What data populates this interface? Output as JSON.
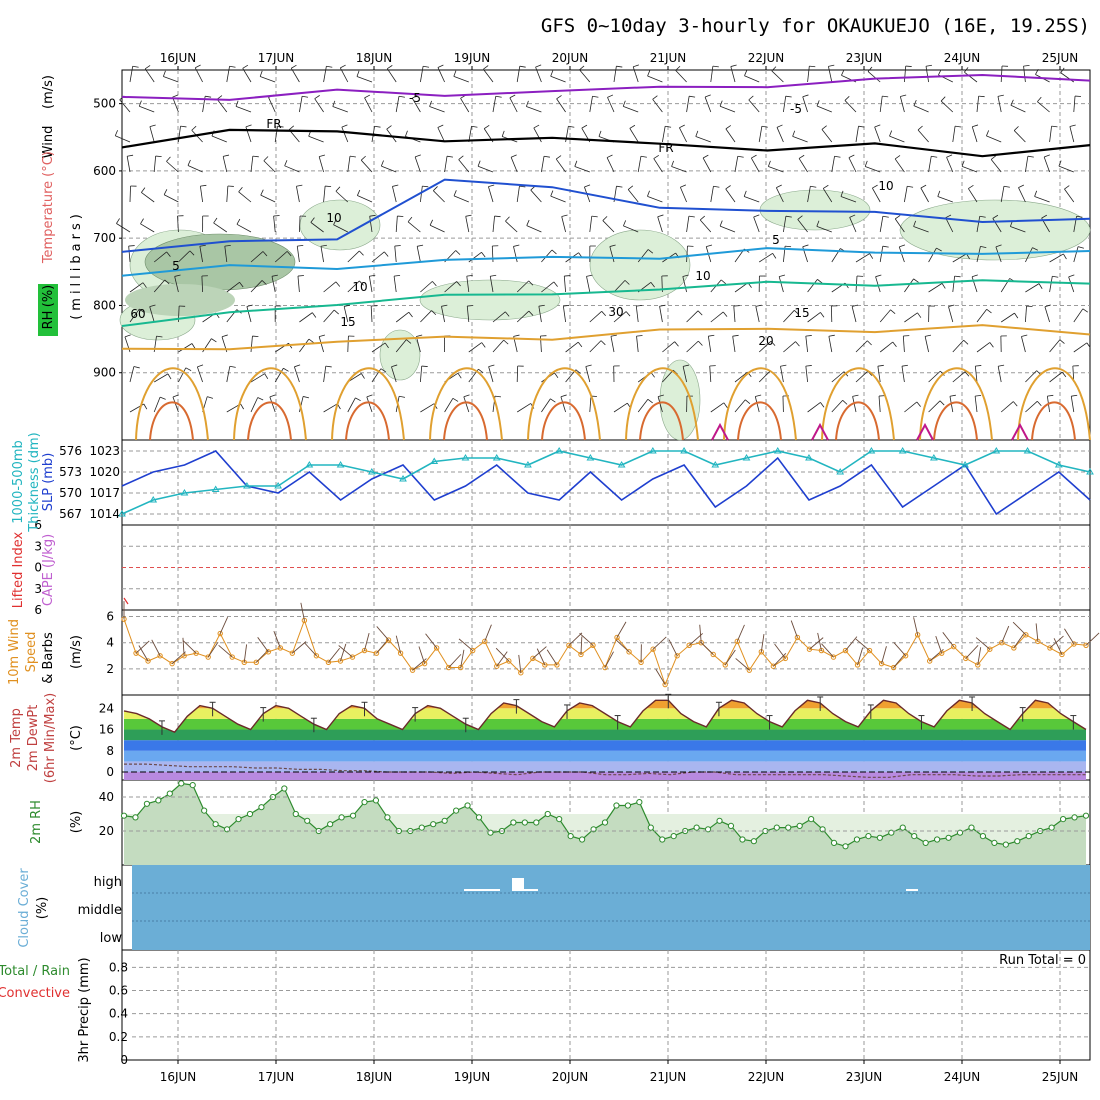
{
  "title": "GFS 0~10day 3-hourly for OKAUKUEJO (16E, 19.25S)",
  "dates": [
    "16JUN",
    "17JUN",
    "18JUN",
    "19JUN",
    "20JUN",
    "21JUN",
    "22JUN",
    "23JUN",
    "24JUN",
    "25JUN"
  ],
  "colors": {
    "grid": "#9a9a9a",
    "cloud": "#6baed6",
    "rh_line": "#2e8b2e",
    "wind_line": "#e09020",
    "slp": "#1f3fcf",
    "thick": "#22b5c0"
  },
  "chart_data": [
    {
      "type": "line",
      "panel": "upper-air",
      "ylabel_words": [
        "Wind",
        "(m/s)",
        "Temperature",
        "(°C)",
        "RH",
        "(%)"
      ],
      "ylabel_right": "(millibars)",
      "yticks": [
        500,
        600,
        700,
        800,
        900
      ],
      "ylim": [
        1000,
        450
      ],
      "contours": [
        {
          "label": "-5",
          "color": "#8b1fc0",
          "level_mb": [
            490,
            490,
            485,
            485,
            480,
            480,
            470,
            465,
            460,
            460
          ]
        },
        {
          "label": "FR",
          "color": "#000000",
          "level_mb": [
            560,
            540,
            545,
            550,
            555,
            560,
            565,
            565,
            575,
            560
          ]
        },
        {
          "label": "5",
          "color": "#2050d0",
          "level_mb": [
            715,
            710,
            700,
            610,
            630,
            650,
            660,
            665,
            670,
            675
          ]
        },
        {
          "label": "10",
          "color": "#1f9ad8",
          "level_mb": [
            755,
            745,
            740,
            735,
            730,
            725,
            720,
            720,
            720,
            725
          ]
        },
        {
          "label": "15",
          "color": "#17b890",
          "level_mb": [
            835,
            810,
            795,
            790,
            780,
            775,
            770,
            765,
            765,
            770
          ]
        },
        {
          "label": "20",
          "color": "#e0a030",
          "level_mb": [
            870,
            860,
            855,
            850,
            845,
            840,
            835,
            835,
            835,
            840
          ]
        }
      ],
      "contour_labels": [
        "-5",
        "FR",
        "5",
        "10",
        "15",
        "20",
        "10",
        "30",
        "30",
        "60"
      ]
    },
    {
      "type": "line",
      "panel": "slp-thickness",
      "ylabel_left": "1000-500mb Thickness (dm)",
      "ylabel_right": "SLP (mb)",
      "yticks_left": [
        567,
        570,
        573,
        576
      ],
      "yticks_right": [
        1014,
        1017,
        1020,
        1023
      ],
      "series": [
        {
          "name": "SLP",
          "values": [
            1018,
            1020,
            1021,
            1023,
            1018,
            1017,
            1020,
            1016,
            1019,
            1021,
            1016,
            1018,
            1021,
            1017,
            1016,
            1020,
            1016,
            1019,
            1021,
            1015,
            1018,
            1022,
            1016,
            1018,
            1021,
            1015,
            1018,
            1021,
            1014,
            1017,
            1020,
            1016
          ]
        },
        {
          "name": "Thickness",
          "values": [
            567,
            569,
            570,
            570.5,
            571,
            571,
            574,
            574,
            573,
            572,
            574.5,
            575,
            575,
            574,
            576,
            575,
            574,
            576,
            576,
            574,
            575,
            576,
            575,
            573,
            576,
            576,
            575,
            574,
            576,
            576,
            574,
            573
          ]
        }
      ]
    },
    {
      "type": "line",
      "panel": "cape-li",
      "ylabel": [
        "Lifted Index",
        "CAPE (J/kg)"
      ],
      "yticks": [
        "6",
        "3",
        "0",
        "3",
        "6"
      ],
      "values": [
        0
      ]
    },
    {
      "type": "line",
      "panel": "wind10m",
      "ylabel": [
        "10m Wind",
        "Speed",
        "& Barbs",
        "(m/s)"
      ],
      "yticks": [
        2,
        4,
        6
      ],
      "ylim": [
        0,
        6.5
      ],
      "values": [
        5.8,
        3.2,
        2.6,
        3.0,
        2.4,
        3.0,
        3.2,
        2.9,
        4.7,
        2.9,
        2.5,
        2.5,
        3.3,
        3.6,
        3.2,
        5.7,
        3.0,
        2.5,
        2.6,
        2.9,
        3.4,
        3.2,
        4.2,
        3.2,
        1.9,
        2.4,
        3.6,
        2.1,
        2.1,
        3.4,
        4.1,
        2.2,
        2.6,
        1.7,
        2.8,
        2.3,
        2.3,
        3.8,
        3.1,
        3.8,
        2.1,
        4.4,
        3.3,
        2.5,
        3.5,
        0.8,
        3.0,
        3.8,
        4.0,
        3.1,
        2.3,
        4.1,
        1.9,
        3.3,
        2.2,
        2.8,
        4.4,
        3.5,
        3.4,
        2.9,
        3.4,
        2.3,
        3.4,
        2.4,
        2.1,
        3.0,
        4.6,
        2.6,
        3.2,
        3.7,
        2.8,
        2.3,
        3.5,
        4.0,
        3.6,
        4.6,
        4.1,
        3.6,
        3.1,
        3.9,
        3.8
      ]
    },
    {
      "type": "area",
      "panel": "temp",
      "ylabel": [
        "2m Temp",
        "2m DewPt",
        "(6hr Min/Max)",
        "(°C)"
      ],
      "yticks": [
        0,
        8,
        16,
        24
      ],
      "ylim": [
        -3,
        29
      ],
      "series": [
        {
          "name": "Temp",
          "values": [
            23,
            22,
            20,
            17,
            15,
            21,
            25,
            24,
            21,
            18,
            16,
            22,
            25,
            24,
            21,
            18,
            16,
            22,
            25,
            24,
            20,
            18,
            16,
            22,
            25,
            24,
            21,
            18,
            16,
            22,
            26,
            25,
            22,
            19,
            17,
            23,
            26,
            25,
            22,
            19,
            17,
            23,
            27,
            27,
            22,
            19,
            17,
            24,
            27,
            26,
            22,
            19,
            17,
            23,
            27,
            26,
            22,
            19,
            17,
            23,
            27,
            26,
            22,
            19,
            17,
            23,
            27,
            26,
            22,
            19,
            16,
            22,
            27,
            26,
            22,
            19,
            16
          ]
        },
        {
          "name": "DewPt",
          "values": [
            3,
            3,
            2.5,
            2,
            2,
            2,
            1.5,
            1.5,
            1,
            1,
            0.5,
            0.5,
            0,
            0,
            0,
            -0.5,
            0,
            -0.5,
            -1,
            0,
            0,
            0,
            -1,
            -1,
            -0.5,
            -1,
            0,
            0,
            -1,
            -1,
            -1,
            -1,
            -1,
            -1.5,
            -2,
            -2,
            -1,
            -1,
            -1,
            -1.5,
            -1.5,
            -1,
            -1,
            -1,
            -1
          ]
        }
      ]
    },
    {
      "type": "area",
      "panel": "rh",
      "ylabel": [
        "2m RH",
        "(%)"
      ],
      "yticks": [
        20,
        40
      ],
      "ylim": [
        0,
        50
      ],
      "values": [
        29,
        28,
        36,
        38,
        42,
        48,
        47,
        32,
        24,
        21,
        27,
        30,
        34,
        40,
        45,
        30,
        26,
        20,
        24,
        28,
        29,
        37,
        38,
        28,
        20,
        20,
        22,
        24,
        26,
        32,
        35,
        28,
        19,
        20,
        25,
        25,
        25,
        30,
        27,
        17,
        15,
        21,
        25,
        35,
        35,
        37,
        22,
        15,
        17,
        20,
        22,
        21,
        26,
        23,
        15,
        14,
        20,
        22,
        22,
        23,
        27,
        21,
        13,
        11,
        15,
        17,
        16,
        19,
        22,
        17,
        13,
        15,
        16,
        19,
        22,
        17,
        13,
        12,
        14,
        17,
        20,
        22,
        27,
        28,
        29
      ]
    },
    {
      "type": "area",
      "panel": "cloud",
      "ylabel": [
        "Cloud Cover",
        "(%)"
      ],
      "levels": [
        "high",
        "middle",
        "low"
      ],
      "values": {
        "high": [
          0
        ],
        "middle": [
          0
        ],
        "low": [
          0
        ]
      }
    },
    {
      "type": "bar",
      "panel": "precip",
      "ylabel": [
        "Total / Rain",
        "Convective",
        "3hr Precip (mm)"
      ],
      "yticks": [
        0,
        0.2,
        0.4,
        0.6,
        0.8
      ],
      "ylim": [
        0,
        0.95
      ],
      "run_total": "Run Total = 0",
      "values": [
        0
      ]
    }
  ],
  "labels": {
    "upper": {
      "wind": "Wind",
      "wind_unit": "(m/s)",
      "temp": "Temperature",
      "temp_unit": "(°C)",
      "rh": "RH",
      "rh_unit": "(%)",
      "mb": "(millibars)"
    },
    "slp": {
      "thick1": "1000-500mb",
      "thick2": "Thickness (dm)",
      "slp": "SLP (mb)"
    },
    "cape": {
      "li": "Lifted Index",
      "cape": "CAPE (J/kg)"
    },
    "wind10": {
      "a": "10m Wind",
      "b": "Speed",
      "c": "& Barbs",
      "d": "(m/s)"
    },
    "temp": {
      "a": "2m Temp",
      "b": "2m DewPt",
      "c": "(6hr Min/Max)",
      "d": "(°C)"
    },
    "rh": {
      "a": "2m RH",
      "b": "(%)"
    },
    "cloud": {
      "a": "Cloud Cover",
      "b": "(%)",
      "high": "high",
      "middle": "middle",
      "low": "low"
    },
    "precip": {
      "a": "Total / Rain",
      "b": "Convective",
      "c": "3hr Precip (mm)",
      "run_total": "Run Total = 0"
    }
  }
}
